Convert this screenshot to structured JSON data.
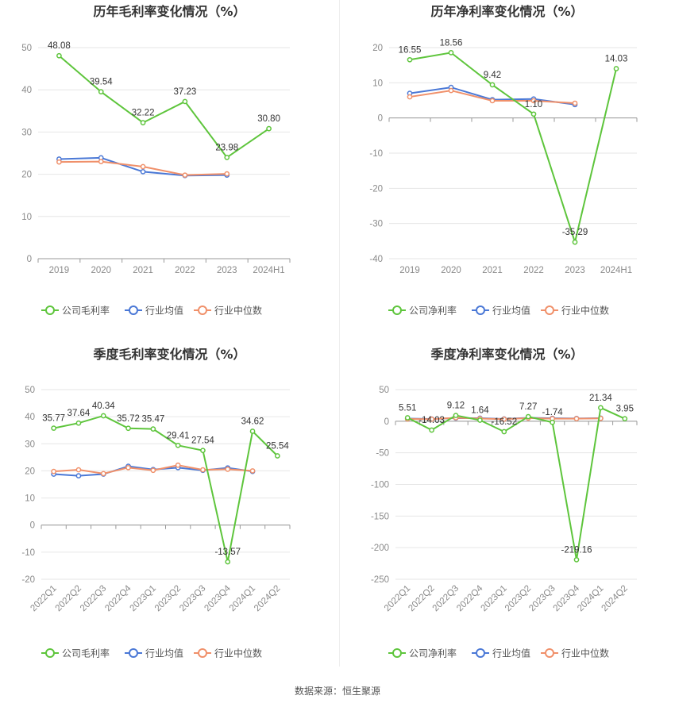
{
  "colors": {
    "company": "#5ec53c",
    "avg": "#4a78d6",
    "median": "#f0906a",
    "grid": "#e6e6e6",
    "axis": "#999999"
  },
  "source_text": "数据来源：恒生聚源",
  "chart_data": [
    {
      "type": "line",
      "title": "历年毛利率变化情况（%）",
      "categories": [
        "2019",
        "2020",
        "2021",
        "2022",
        "2023",
        "2024H1"
      ],
      "ylim": [
        0,
        50
      ],
      "yticks": [
        0,
        10,
        20,
        30,
        40,
        50
      ],
      "series": [
        {
          "name": "公司毛利率",
          "color": "#5ec53c",
          "labels": true,
          "values": [
            48.08,
            39.54,
            32.22,
            37.23,
            23.98,
            30.8
          ],
          "label_text": [
            "48.08",
            "39.54",
            "32.22",
            "37.23",
            "23.98",
            "30.80"
          ]
        },
        {
          "name": "行业均值",
          "color": "#4a78d6",
          "labels": false,
          "values": [
            23.6,
            23.9,
            20.6,
            19.7,
            19.8,
            null
          ]
        },
        {
          "name": "行业中位数",
          "color": "#f0906a",
          "labels": false,
          "values": [
            22.9,
            23.0,
            21.8,
            19.8,
            20.1,
            null
          ]
        }
      ]
    },
    {
      "type": "line",
      "title": "历年净利率变化情况（%）",
      "categories": [
        "2019",
        "2020",
        "2021",
        "2022",
        "2023",
        "2024H1"
      ],
      "ylim": [
        -40,
        20
      ],
      "yticks": [
        -40,
        -30,
        -20,
        -10,
        0,
        10,
        20
      ],
      "series": [
        {
          "name": "公司净利率",
          "color": "#5ec53c",
          "labels": true,
          "values": [
            16.55,
            18.56,
            9.42,
            1.1,
            -35.29,
            14.03
          ],
          "label_text": [
            "16.55",
            "18.56",
            "9.42",
            "1.10",
            "-35.29",
            "14.03"
          ]
        },
        {
          "name": "行业均值",
          "color": "#4a78d6",
          "labels": false,
          "values": [
            7.0,
            8.7,
            5.2,
            5.4,
            3.8,
            null
          ]
        },
        {
          "name": "行业中位数",
          "color": "#f0906a",
          "labels": false,
          "values": [
            6.0,
            7.8,
            4.9,
            4.9,
            4.2,
            null
          ]
        }
      ]
    },
    {
      "type": "line",
      "title": "季度毛利率变化情况（%）",
      "categories": [
        "2022Q1",
        "2022Q2",
        "2022Q3",
        "2022Q4",
        "2023Q1",
        "2023Q2",
        "2023Q3",
        "2023Q4",
        "2024Q1",
        "2024Q2"
      ],
      "ylim": [
        -20,
        50
      ],
      "yticks": [
        -20,
        -10,
        0,
        10,
        20,
        30,
        40,
        50
      ],
      "series": [
        {
          "name": "公司毛利率",
          "color": "#5ec53c",
          "labels": true,
          "values": [
            35.77,
            37.64,
            40.34,
            35.72,
            35.47,
            29.41,
            27.54,
            -13.57,
            34.62,
            25.54
          ],
          "label_text": [
            "35.77",
            "37.64",
            "40.34",
            "35.72",
            "35.47",
            "29.41",
            "27.54",
            "-13.57",
            "34.62",
            "25.54"
          ]
        },
        {
          "name": "行业均值",
          "color": "#4a78d6",
          "labels": false,
          "values": [
            18.8,
            18.2,
            18.8,
            21.7,
            20.5,
            21.2,
            20.2,
            21.1,
            19.8,
            null
          ]
        },
        {
          "name": "行业中位数",
          "color": "#f0906a",
          "labels": false,
          "values": [
            19.8,
            20.4,
            19.0,
            21.2,
            20.2,
            22.1,
            20.4,
            20.6,
            20.0,
            null
          ]
        }
      ]
    },
    {
      "type": "line",
      "title": "季度净利率变化情况（%）",
      "categories": [
        "2022Q1",
        "2022Q2",
        "2022Q3",
        "2022Q4",
        "2023Q1",
        "2023Q2",
        "2023Q3",
        "2023Q4",
        "2024Q1",
        "2024Q2"
      ],
      "ylim": [
        -250,
        50
      ],
      "yticks": [
        -250,
        -200,
        -150,
        -100,
        -50,
        0,
        50
      ],
      "series": [
        {
          "name": "公司净利率",
          "color": "#5ec53c",
          "labels": true,
          "values": [
            5.51,
            -14.03,
            9.12,
            1.64,
            -16.52,
            7.27,
            -1.74,
            -219.16,
            21.34,
            3.95
          ],
          "label_text": [
            "5.51",
            "-14.03",
            "9.12",
            "1.64",
            "-16.52",
            "7.27",
            "-1.74",
            "-219.16",
            "21.34",
            "3.95"
          ]
        },
        {
          "name": "行业均值",
          "color": "#4a78d6",
          "labels": false,
          "values": [
            4.2,
            3.5,
            5.0,
            4.8,
            3.6,
            5.5,
            4.6,
            4.4,
            4.8,
            null
          ]
        },
        {
          "name": "行业中位数",
          "color": "#f0906a",
          "labels": false,
          "values": [
            3.5,
            3.2,
            5.5,
            4.2,
            3.2,
            5.0,
            4.0,
            4.0,
            4.5,
            null
          ]
        }
      ]
    }
  ]
}
